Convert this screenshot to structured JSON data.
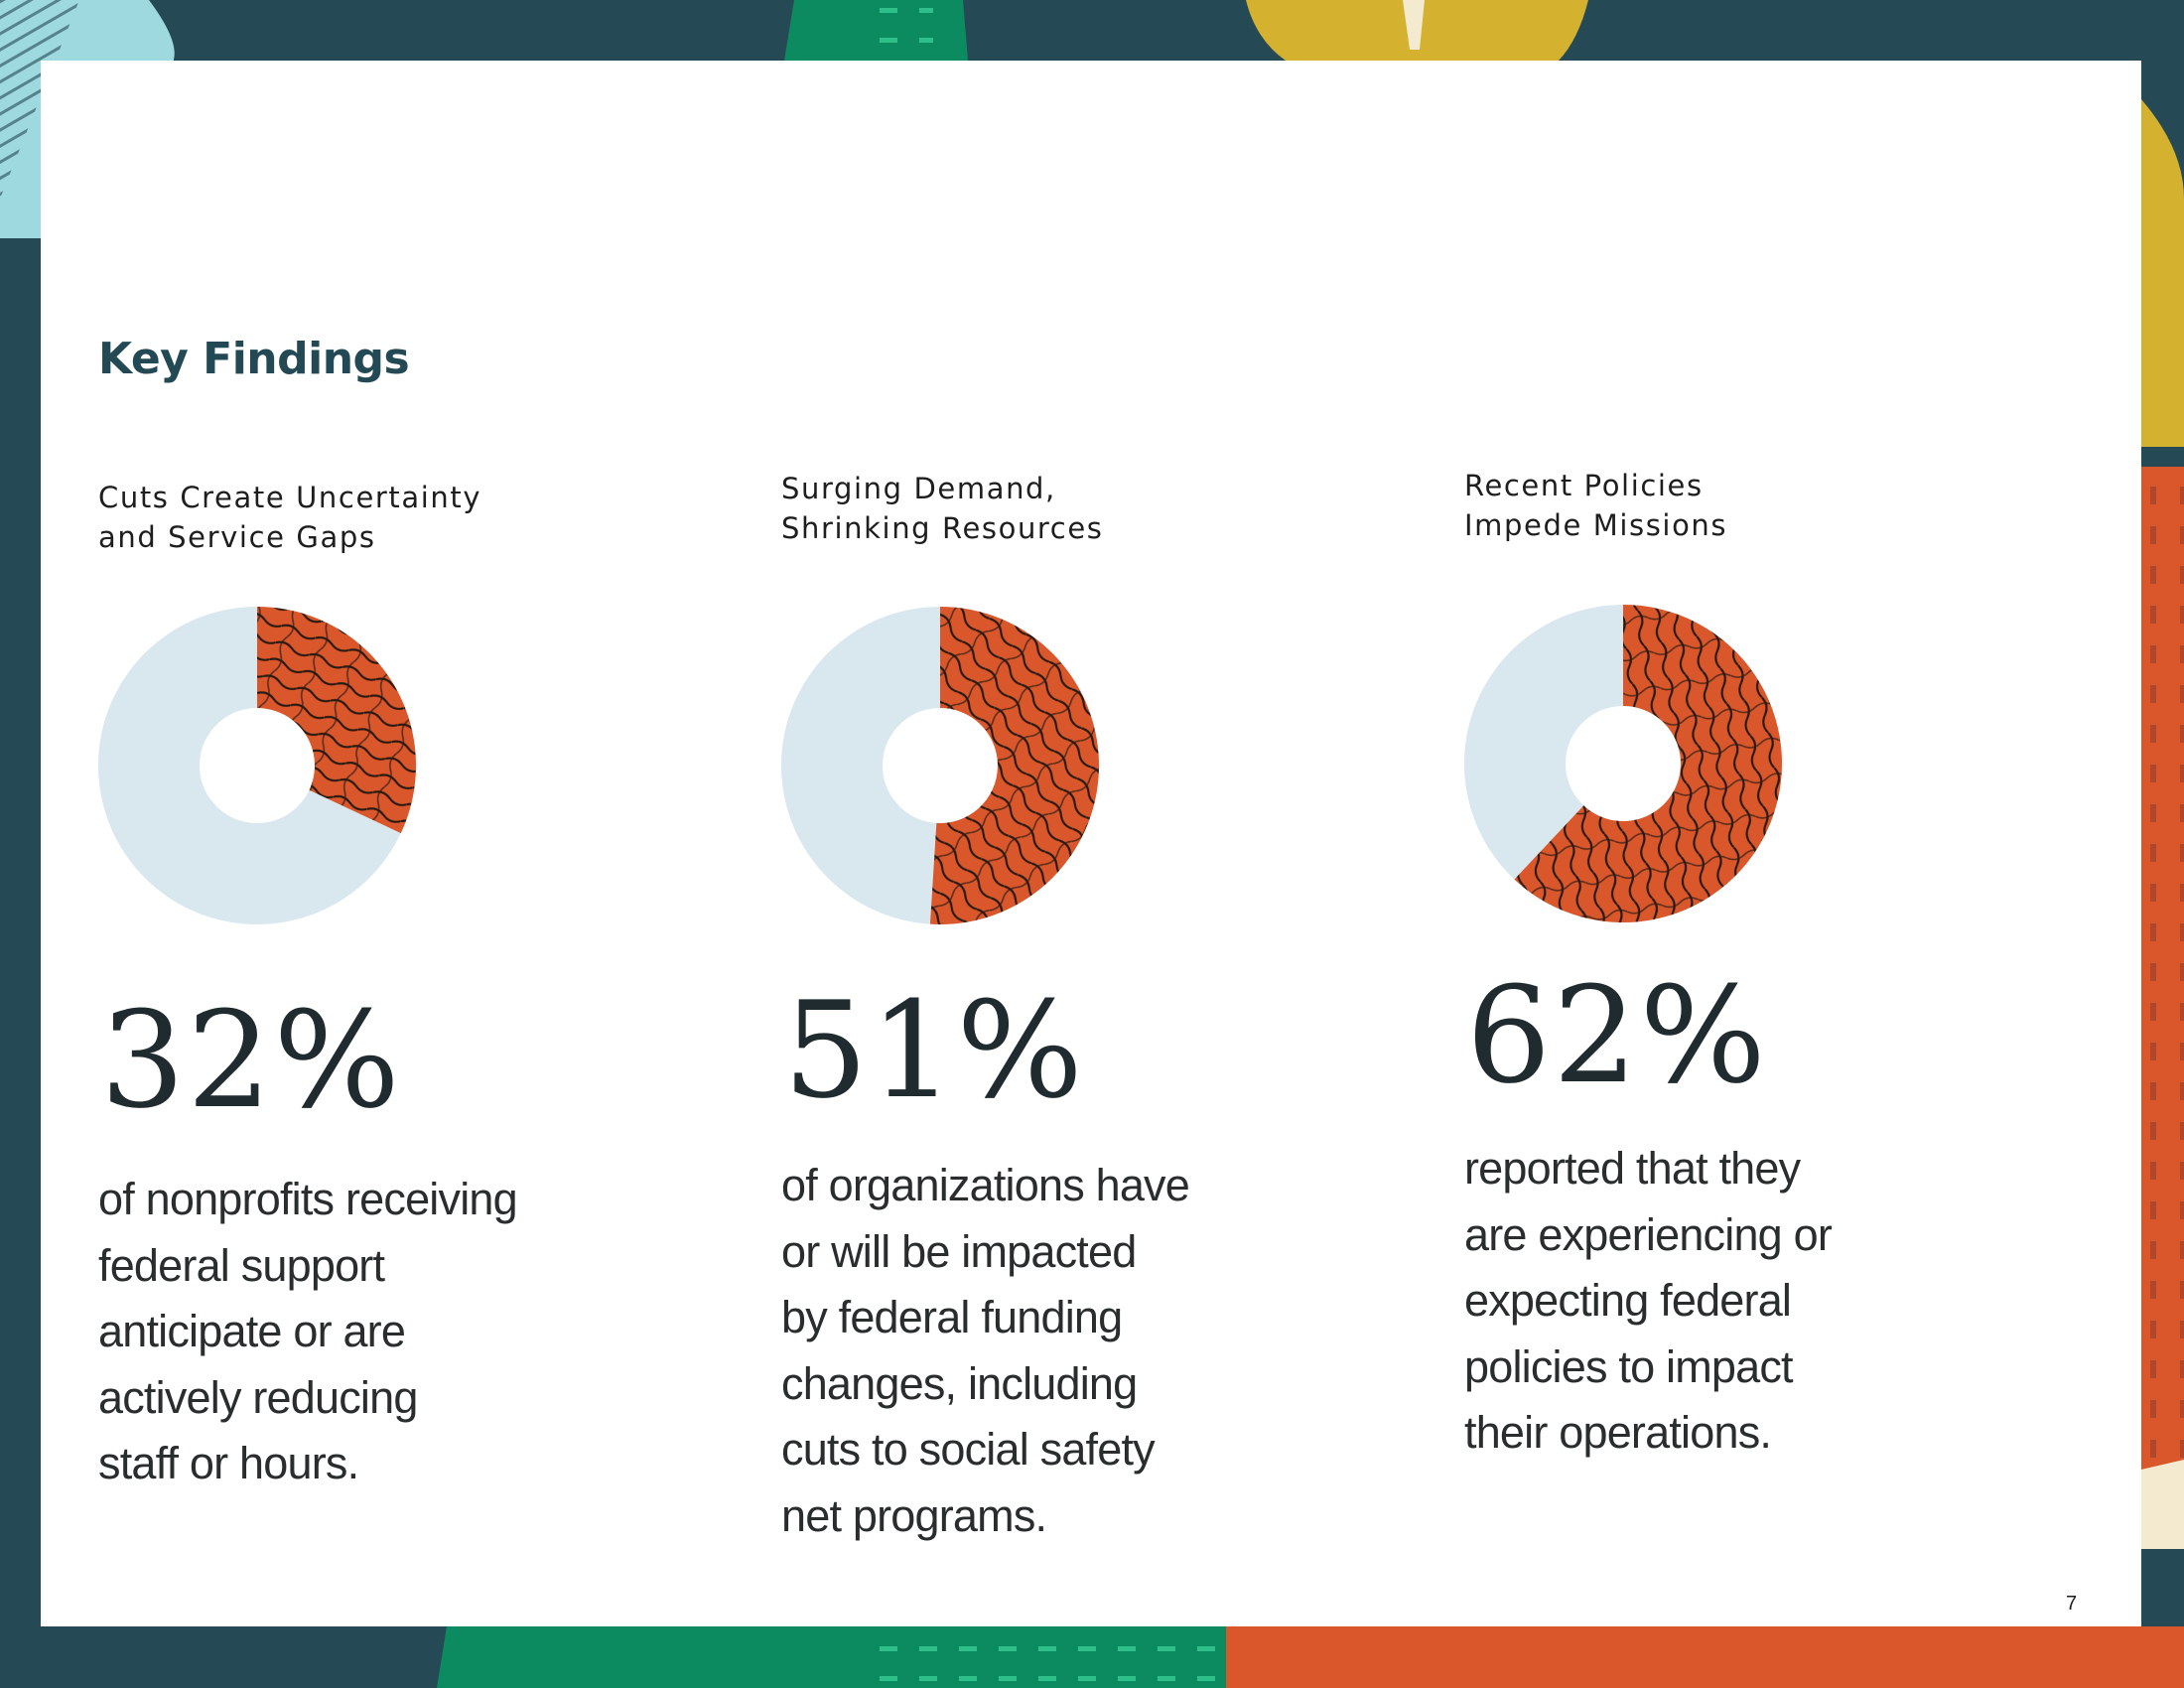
{
  "page": {
    "heading": "Key Findings",
    "page_number": "7"
  },
  "colors": {
    "frame": "#254a55",
    "accent": "#d9572b",
    "donut_rest": "#d9e8ee",
    "heading": "#234955",
    "teal_green": "#0c8b61",
    "mustard": "#d4b12e",
    "light_blue": "#9ed9df"
  },
  "findings": [
    {
      "subtitle_lines": [
        "Cuts Create Uncertainty",
        "and Service Gaps"
      ],
      "percent_label": "32%",
      "percent_value": 32,
      "description_lines": [
        "of nonprofits receiving",
        "federal support",
        "anticipate or are",
        "actively reducing",
        "staff or hours."
      ]
    },
    {
      "subtitle_lines": [
        "Surging Demand,",
        "Shrinking Resources"
      ],
      "percent_label": "51%",
      "percent_value": 51,
      "description_lines": [
        "of organizations have",
        "or will be impacted",
        "by federal funding",
        "changes, including",
        "cuts to social safety",
        "net programs."
      ]
    },
    {
      "subtitle_lines": [
        "Recent Policies",
        "Impede Missions"
      ],
      "percent_label": "62%",
      "percent_value": 62,
      "description_lines": [
        "reported that they",
        "are experiencing or",
        "expecting federal",
        "policies to impact",
        "their operations."
      ]
    }
  ]
}
